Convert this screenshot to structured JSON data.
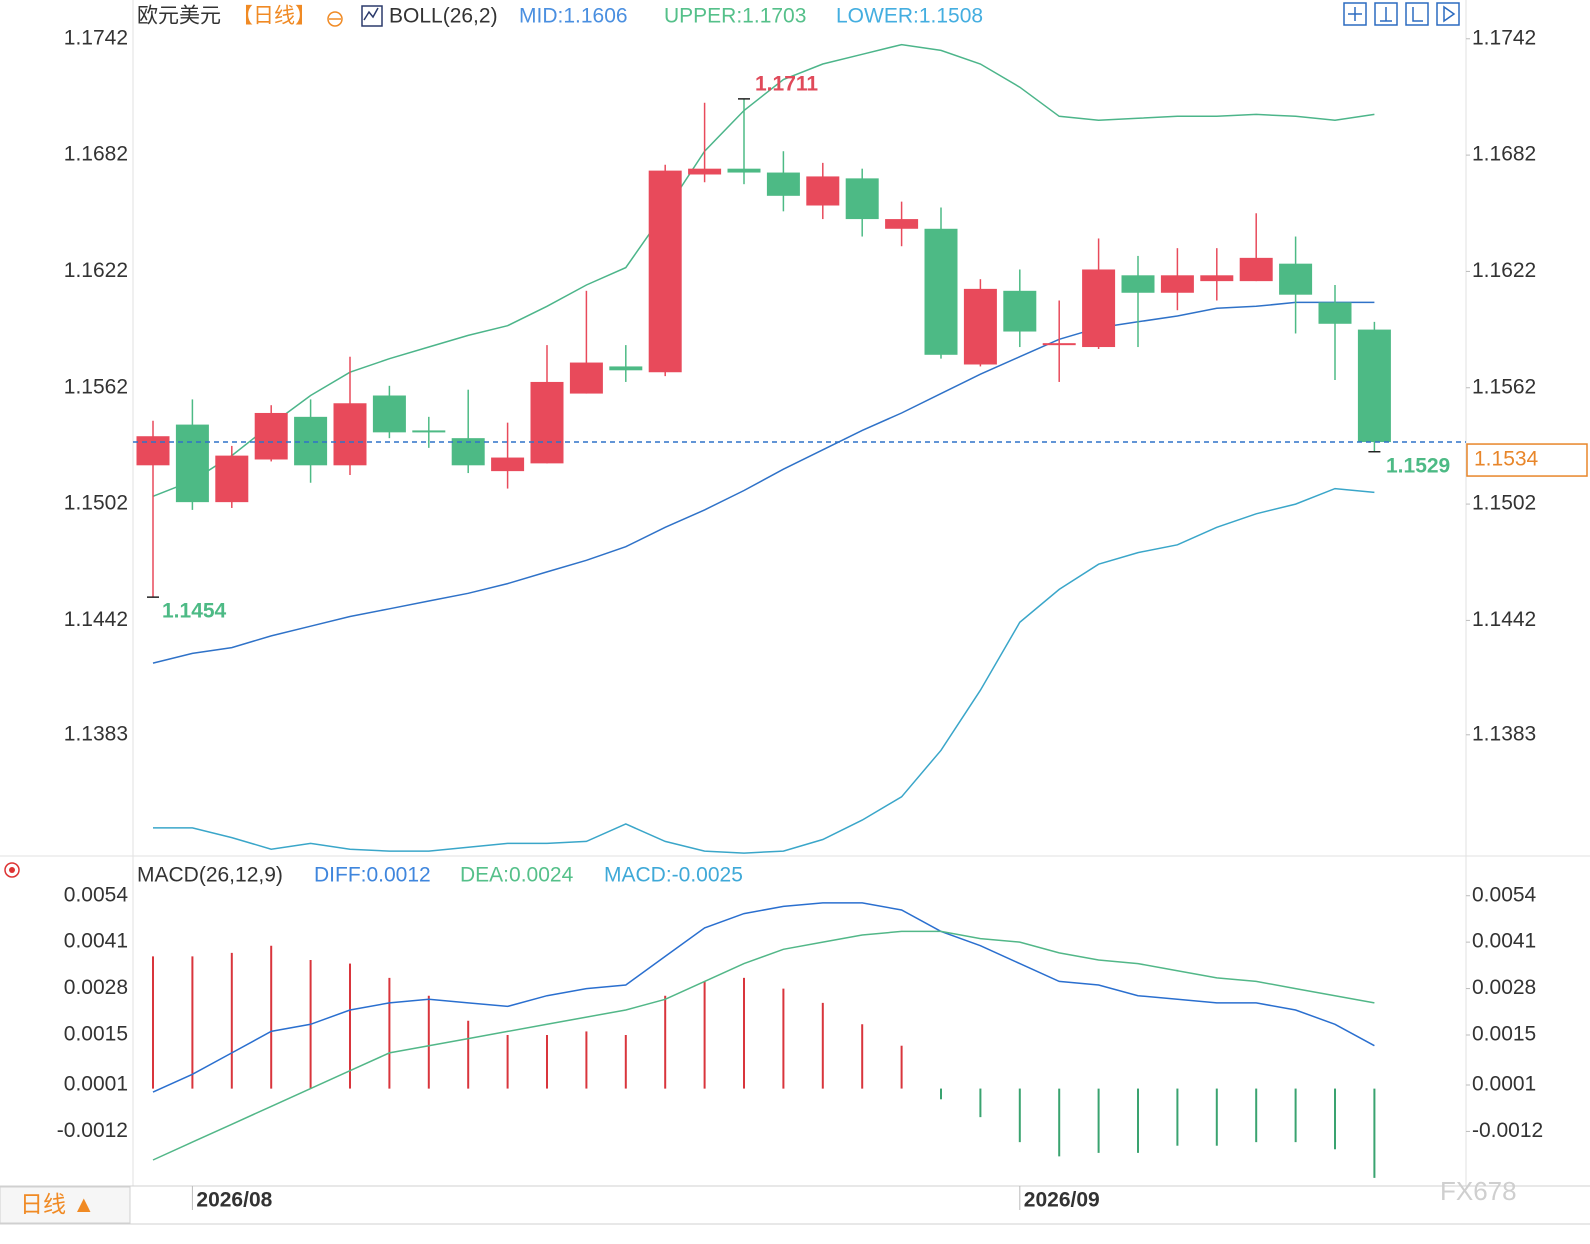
{
  "chart_data": [
    {
      "type": "candlestick",
      "title": "欧元美元",
      "period": "【日线】",
      "indicator": "BOLL(26,2)",
      "categories": [
        null,
        "2026/08",
        null,
        null,
        null,
        null,
        null,
        null,
        null,
        null,
        null,
        null,
        null,
        null,
        null,
        null,
        null,
        null,
        null,
        null,
        null,
        null,
        "2026/09",
        null,
        null,
        null,
        null,
        null,
        null,
        null,
        null,
        null
      ],
      "open": [
        1.1522,
        1.1543,
        1.1503,
        1.1525,
        1.1547,
        1.1522,
        1.1558,
        1.154,
        1.1536,
        1.1519,
        1.1523,
        1.1559,
        1.1573,
        1.157,
        1.1672,
        1.1675,
        1.1673,
        1.1656,
        1.167,
        1.1644,
        1.1644,
        1.1574,
        1.1612,
        1.1584,
        1.1583,
        1.162,
        1.1611,
        1.1617,
        1.1617,
        1.1626,
        1.1606,
        1.1592
      ],
      "high": [
        1.1545,
        1.1556,
        1.1532,
        1.1553,
        1.1556,
        1.1578,
        1.1563,
        1.1547,
        1.1561,
        1.1544,
        1.1584,
        1.1612,
        1.1584,
        1.1677,
        1.1709,
        1.1711,
        1.1684,
        1.1678,
        1.1675,
        1.1658,
        1.1655,
        1.1618,
        1.1623,
        1.1607,
        1.1639,
        1.163,
        1.1634,
        1.1634,
        1.1652,
        1.164,
        1.1615,
        1.1596
      ],
      "low": [
        1.1454,
        1.1499,
        1.15,
        1.1524,
        1.1513,
        1.1517,
        1.1536,
        1.1531,
        1.1518,
        1.151,
        1.1523,
        1.1559,
        1.1565,
        1.1568,
        1.1668,
        1.1667,
        1.1653,
        1.1649,
        1.164,
        1.1635,
        1.1577,
        1.1573,
        1.1583,
        1.1565,
        1.1582,
        1.1583,
        1.1602,
        1.1607,
        1.1617,
        1.159,
        1.1566,
        1.1529
      ],
      "close": [
        1.1537,
        1.1503,
        1.1527,
        1.1549,
        1.1522,
        1.1554,
        1.1539,
        1.1539,
        1.1522,
        1.1526,
        1.1565,
        1.1575,
        1.1571,
        1.1674,
        1.1675,
        1.1673,
        1.1661,
        1.1671,
        1.1649,
        1.1649,
        1.1579,
        1.1613,
        1.1591,
        1.1585,
        1.1623,
        1.1611,
        1.162,
        1.162,
        1.1629,
        1.161,
        1.1595,
        1.1534
      ],
      "up_color": "#e84a5b",
      "down_color": "#4dba85",
      "series": [
        {
          "name": "MID:1.1606",
          "color": "#2f72c8",
          "label_color": "#4a8fe0",
          "values": [
            1.142,
            1.1425,
            1.1428,
            1.1434,
            1.1439,
            1.1444,
            1.1448,
            1.1452,
            1.1456,
            1.1461,
            1.1467,
            1.1473,
            1.148,
            1.149,
            1.1499,
            1.1509,
            1.152,
            1.153,
            1.154,
            1.1549,
            1.1559,
            1.1569,
            1.1578,
            1.1587,
            1.1593,
            1.1596,
            1.1599,
            1.1603,
            1.1604,
            1.1606,
            1.1606,
            1.1606
          ]
        },
        {
          "name": "UPPER:1.1703",
          "color": "#4cb58a",
          "label_color": "#55c08a",
          "values": [
            1.1506,
            1.1514,
            1.1527,
            1.1543,
            1.1558,
            1.157,
            1.1577,
            1.1583,
            1.1589,
            1.1594,
            1.1604,
            1.1615,
            1.1624,
            1.1653,
            1.1684,
            1.1705,
            1.1721,
            1.1729,
            1.1734,
            1.1739,
            1.1736,
            1.1729,
            1.1717,
            1.1702,
            1.17,
            1.1701,
            1.1702,
            1.1702,
            1.1703,
            1.1702,
            1.17,
            1.1703
          ]
        },
        {
          "name": "LOWER:1.1508",
          "color": "#3aa6c9",
          "label_color": "#44aee0",
          "values": [
            1.1335,
            1.1335,
            1.133,
            1.1324,
            1.1327,
            1.1324,
            1.1323,
            1.1323,
            1.1325,
            1.1327,
            1.1327,
            1.1328,
            1.1337,
            1.1328,
            1.1323,
            1.1322,
            1.1323,
            1.1329,
            1.1339,
            1.1351,
            1.1375,
            1.1406,
            1.1441,
            1.1458,
            1.1471,
            1.1477,
            1.1481,
            1.149,
            1.1497,
            1.1502,
            1.151,
            1.1508
          ]
        }
      ],
      "last_price": 1.1534,
      "annotations": [
        {
          "text": "1.1711"
        },
        {
          "text": "1.1454"
        },
        {
          "text": "1.1529"
        }
      ],
      "ylim": [
        1.1321,
        1.1762
      ],
      "yticks": [
        1.1742,
        1.1682,
        1.1622,
        1.1562,
        1.1502,
        1.1442,
        1.1383
      ]
    },
    {
      "type": "macd",
      "title": "MACD(26,12,9)",
      "histogram": {
        "name": "MACD:-0.0025",
        "color": "#3fa9d8",
        "up_color": "#d9353c",
        "down_color": "#3aa370",
        "values": [
          0.0037,
          0.0037,
          0.0038,
          0.004,
          0.0036,
          0.0035,
          0.0031,
          0.0026,
          0.0019,
          0.0015,
          0.0015,
          0.0016,
          0.0015,
          0.0026,
          0.003,
          0.0031,
          0.0028,
          0.0024,
          0.0018,
          0.0012,
          -0.0003,
          -0.0008,
          -0.0015,
          -0.0019,
          -0.0018,
          -0.0018,
          -0.0016,
          -0.0016,
          -0.0015,
          -0.0015,
          -0.0017,
          -0.0025
        ]
      },
      "series": [
        {
          "name": "DIFF:0.0012",
          "color": "#2a6fcf",
          "label_color": "#3f86dd",
          "values": [
            -0.0001,
            0.0004,
            0.001,
            0.0016,
            0.0018,
            0.0022,
            0.0024,
            0.0025,
            0.0024,
            0.0023,
            0.0026,
            0.0028,
            0.0029,
            0.0037,
            0.0045,
            0.0049,
            0.0051,
            0.0052,
            0.0052,
            0.005,
            0.0044,
            0.004,
            0.0035,
            0.003,
            0.0029,
            0.0026,
            0.0025,
            0.0024,
            0.0024,
            0.0022,
            0.0018,
            0.0012
          ]
        },
        {
          "name": "DEA:0.0024",
          "color": "#52b788",
          "label_color": "#55c08a",
          "values": [
            -0.002,
            -0.0015,
            -0.001,
            -0.0005,
            0.0,
            0.0005,
            0.001,
            0.0012,
            0.0014,
            0.0016,
            0.0018,
            0.002,
            0.0022,
            0.0025,
            0.003,
            0.0035,
            0.0039,
            0.0041,
            0.0043,
            0.0044,
            0.0044,
            0.0042,
            0.0041,
            0.0038,
            0.0036,
            0.0035,
            0.0033,
            0.0031,
            0.003,
            0.0028,
            0.0026,
            0.0024
          ]
        }
      ],
      "ylim": [
        -0.0027,
        0.0064
      ],
      "yticks": [
        0.0054,
        0.0041,
        0.0028,
        0.0015,
        0.0001,
        -0.0012
      ]
    }
  ],
  "page": {
    "period_tab": "日线 ▲",
    "watermark": "FX678"
  }
}
